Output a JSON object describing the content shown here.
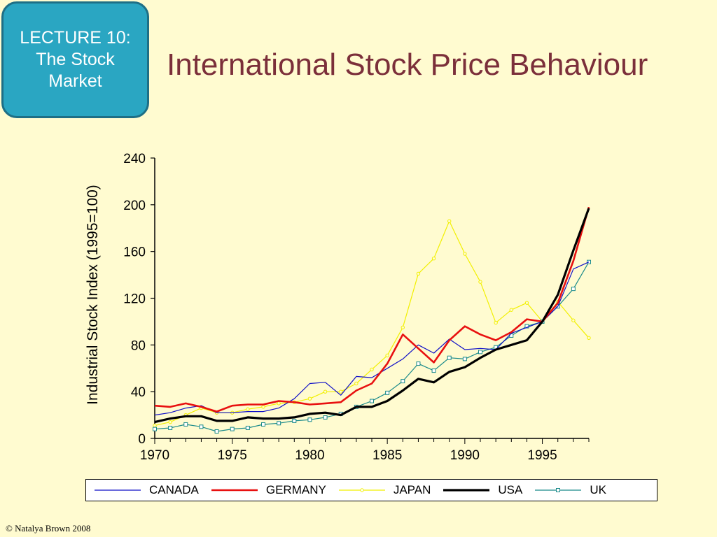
{
  "slide": {
    "badge_lines": [
      "LECTURE 10:",
      "The Stock",
      "Market"
    ],
    "title": "International Stock Price Behaviour",
    "footer": "© Natalya Brown 2008"
  },
  "colors": {
    "background": "#fffbd0",
    "badge_fill": "#2aa6c2",
    "title": "#7b2f3a"
  },
  "chart_data": {
    "type": "line",
    "ylabel": "Industrial Stock Index (1995=100)",
    "xlabel": "",
    "xlim": [
      1970,
      1998
    ],
    "ylim": [
      0,
      240
    ],
    "x_ticks": [
      1970,
      1975,
      1980,
      1985,
      1990,
      1995
    ],
    "y_ticks": [
      0,
      40,
      80,
      120,
      160,
      200,
      240
    ],
    "legend_position": "bottom",
    "x": [
      1970,
      1971,
      1972,
      1973,
      1974,
      1975,
      1976,
      1977,
      1978,
      1979,
      1980,
      1981,
      1982,
      1983,
      1984,
      1985,
      1986,
      1987,
      1988,
      1989,
      1990,
      1991,
      1992,
      1993,
      1994,
      1995,
      1996,
      1997,
      1998
    ],
    "series": [
      {
        "name": "CANADA",
        "color": "#1010c8",
        "width": 1.2,
        "marker": "none",
        "values": [
          20,
          22,
          26,
          28,
          22,
          22,
          23,
          23,
          26,
          34,
          47,
          48,
          37,
          53,
          52,
          60,
          68,
          80,
          73,
          85,
          76,
          77,
          76,
          90,
          95,
          100,
          113,
          145,
          151
        ]
      },
      {
        "name": "GERMANY",
        "color": "#e81010",
        "width": 2.6,
        "marker": "none",
        "values": [
          28,
          27,
          30,
          27,
          23,
          28,
          29,
          29,
          32,
          31,
          29,
          30,
          31,
          41,
          47,
          64,
          89,
          77,
          65,
          84,
          96,
          89,
          84,
          91,
          102,
          100,
          116,
          152,
          198
        ]
      },
      {
        "name": "JAPAN",
        "color": "#f2f000",
        "width": 1.2,
        "marker": "circle",
        "values": [
          11,
          14,
          20,
          26,
          22,
          22,
          25,
          27,
          30,
          31,
          34,
          40,
          40,
          47,
          59,
          71,
          95,
          141,
          154,
          186,
          158,
          134,
          99,
          110,
          116,
          100,
          117,
          101,
          86
        ]
      },
      {
        "name": "USA",
        "color": "#000000",
        "width": 3.2,
        "marker": "none",
        "values": [
          14,
          17,
          19,
          19,
          15,
          15,
          18,
          17,
          17,
          18,
          21,
          22,
          20,
          27,
          27,
          32,
          41,
          51,
          48,
          57,
          61,
          69,
          76,
          80,
          84,
          100,
          123,
          161,
          197
        ]
      },
      {
        "name": "UK",
        "color": "#1a8a8a",
        "width": 1.2,
        "marker": "square",
        "values": [
          8,
          9,
          12,
          10,
          6,
          8,
          9,
          12,
          13,
          15,
          16,
          18,
          21,
          27,
          32,
          39,
          49,
          64,
          58,
          69,
          68,
          74,
          78,
          88,
          96,
          100,
          113,
          128,
          151
        ]
      }
    ]
  }
}
